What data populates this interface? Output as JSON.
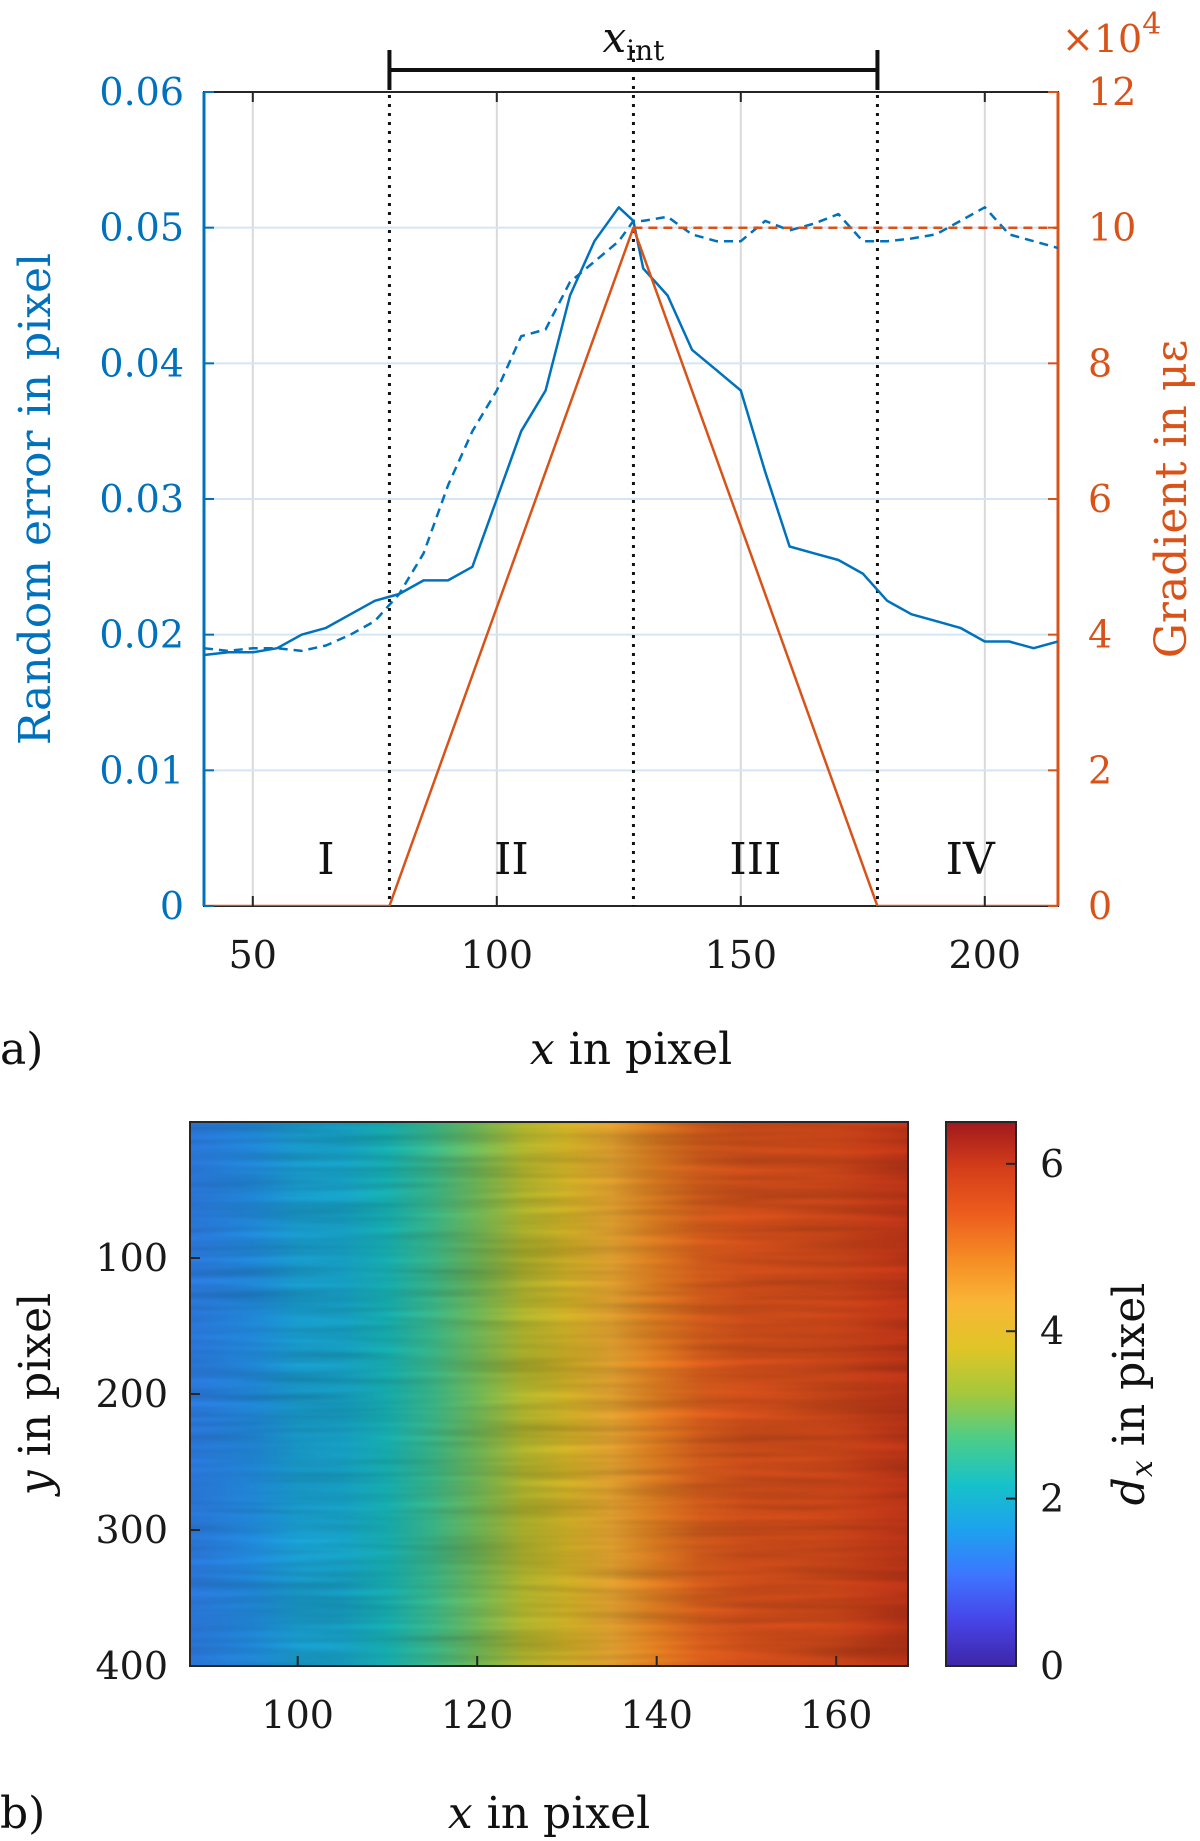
{
  "chart_data": [
    {
      "type": "line",
      "panel": "a)",
      "xlabel_var": "x",
      "xlabel_rest": " in pixel",
      "ylabel": "Random error in pixel",
      "y2label": "Gradient in με",
      "y2_multiplier": "×10",
      "y2_multiplier_exp": "4",
      "xlim": [
        40,
        215
      ],
      "ylim": [
        0,
        0.06
      ],
      "y2lim": [
        0,
        12
      ],
      "xticks": [
        50,
        100,
        150,
        200
      ],
      "yticks": [
        "0",
        "0.01",
        "0.02",
        "0.03",
        "0.04",
        "0.05",
        "0.06"
      ],
      "y2ticks": [
        "0",
        "2",
        "4",
        "6",
        "8",
        "10",
        "12"
      ],
      "grid": true,
      "interval": {
        "label_var": "x",
        "label_sub": "int",
        "x": [
          78,
          178
        ]
      },
      "dividers": [
        78,
        128,
        178
      ],
      "regions": [
        {
          "label": "I",
          "x": 65
        },
        {
          "label": "II",
          "x": 103
        },
        {
          "label": "III",
          "x": 153
        },
        {
          "label": "IV",
          "x": 197
        }
      ],
      "series": [
        {
          "name": "random error (solid)",
          "axis": "left",
          "style": "solid",
          "color": "#0072BD",
          "x": [
            40,
            45,
            50,
            55,
            60,
            65,
            70,
            75,
            80,
            85,
            90,
            95,
            100,
            105,
            110,
            115,
            120,
            125,
            128,
            130,
            135,
            140,
            145,
            150,
            155,
            160,
            165,
            170,
            175,
            180,
            185,
            190,
            195,
            200,
            205,
            210,
            215
          ],
          "values": [
            0.0185,
            0.0187,
            0.0187,
            0.019,
            0.02,
            0.0205,
            0.0215,
            0.0225,
            0.023,
            0.024,
            0.024,
            0.025,
            0.03,
            0.035,
            0.038,
            0.045,
            0.049,
            0.0515,
            0.0505,
            0.047,
            0.045,
            0.041,
            0.0395,
            0.038,
            0.032,
            0.0265,
            0.026,
            0.0255,
            0.0245,
            0.0225,
            0.0215,
            0.021,
            0.0205,
            0.0195,
            0.0195,
            0.019,
            0.0195
          ]
        },
        {
          "name": "random error (dashed)",
          "axis": "left",
          "style": "dashed",
          "color": "#0072BD",
          "x": [
            40,
            45,
            50,
            55,
            60,
            65,
            70,
            75,
            80,
            85,
            90,
            95,
            100,
            105,
            110,
            115,
            120,
            125,
            128,
            130,
            135,
            140,
            145,
            150,
            155,
            160,
            165,
            170,
            175,
            180,
            185,
            190,
            195,
            200,
            205,
            210,
            215
          ],
          "values": [
            0.019,
            0.0188,
            0.019,
            0.019,
            0.0188,
            0.0192,
            0.02,
            0.021,
            0.023,
            0.026,
            0.031,
            0.035,
            0.038,
            0.042,
            0.0425,
            0.046,
            0.0475,
            0.049,
            0.0505,
            0.0505,
            0.0508,
            0.0495,
            0.049,
            0.049,
            0.0505,
            0.0498,
            0.0503,
            0.051,
            0.049,
            0.049,
            0.0492,
            0.0495,
            0.0505,
            0.0515,
            0.0495,
            0.049,
            0.0485
          ]
        },
        {
          "name": "gradient",
          "axis": "right",
          "style": "solid",
          "color": "#D95319",
          "x": [
            40,
            78,
            128,
            178,
            215
          ],
          "values": [
            0,
            0,
            10,
            0,
            0
          ]
        },
        {
          "name": "gradient (dashed)",
          "axis": "right",
          "style": "dashed",
          "color": "#D95319",
          "x": [
            128,
            215
          ],
          "values": [
            10,
            10
          ]
        }
      ]
    },
    {
      "type": "heatmap",
      "panel": "b)",
      "xlabel_var": "x",
      "xlabel_rest": " in pixel",
      "ylabel_var": "y",
      "ylabel_rest": " in pixel",
      "xlim": [
        88,
        168
      ],
      "ylim": [
        0,
        400
      ],
      "xticks": [
        100,
        120,
        140,
        160
      ],
      "yticks": [
        100,
        200,
        300,
        400
      ],
      "colorbar": {
        "label_var": "d",
        "label_sub": "x",
        "label_rest": " in pixel",
        "range": [
          0,
          6.5
        ],
        "ticks": [
          "0",
          "2",
          "4",
          "6"
        ],
        "colormap": [
          "#3E26A8",
          "#4744E8",
          "#3D75FF",
          "#1DA2EE",
          "#16C2C9",
          "#4BCD8A",
          "#A4C83B",
          "#E0C527",
          "#F9B636",
          "#F68B24",
          "#EC5C1D",
          "#D43D1A",
          "#A0191E"
        ]
      },
      "profile": {
        "x": [
          88,
          95,
          100,
          105,
          110,
          115,
          120,
          125,
          130,
          135,
          140,
          145,
          150,
          155,
          160,
          165,
          168
        ],
        "values": [
          1.3,
          1.5,
          1.8,
          1.9,
          2.2,
          2.6,
          3.0,
          3.5,
          3.9,
          4.4,
          4.9,
          5.3,
          5.5,
          5.6,
          5.7,
          5.9,
          6.0
        ]
      }
    }
  ]
}
